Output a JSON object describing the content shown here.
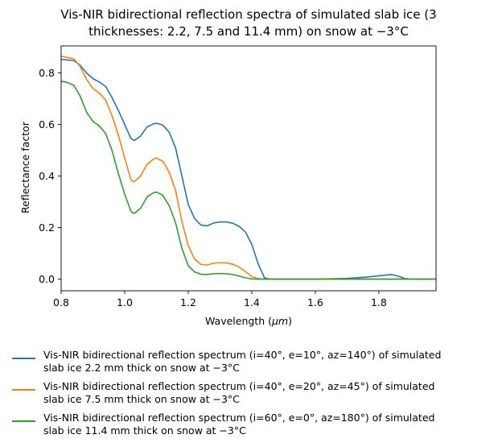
{
  "chart_data": {
    "type": "line",
    "title": "Vis-NIR bidirectional reflection spectra of simulated slab ice (3\nthicknesses: 2.2, 7.5 and 11.4 mm) on snow at −3°C",
    "xlabel": "Wavelength (μm)",
    "ylabel": "Reflectance factor",
    "xlim": [
      0.8,
      1.98
    ],
    "ylim": [
      -0.045,
      0.905
    ],
    "xticks": [
      "0.8",
      "1.0",
      "1.2",
      "1.4",
      "1.6",
      "1.8"
    ],
    "yticks": [
      "0.0",
      "0.2",
      "0.4",
      "0.6",
      "0.8"
    ],
    "grid": false,
    "legend_position": "below",
    "series": [
      {
        "name": "Vis-NIR bidirectional reflection spectrum (i=40°, e=10°, az=140°) of simulated\nslab ice 2.2 mm thick on snow at −3°C",
        "color": "#1f77b4",
        "points": [
          [
            0.8,
            0.853
          ],
          [
            0.84,
            0.848
          ],
          [
            0.86,
            0.83
          ],
          [
            0.88,
            0.8
          ],
          [
            0.9,
            0.778
          ],
          [
            0.92,
            0.765
          ],
          [
            0.94,
            0.748
          ],
          [
            0.96,
            0.705
          ],
          [
            0.98,
            0.655
          ],
          [
            1.0,
            0.6
          ],
          [
            1.02,
            0.545
          ],
          [
            1.03,
            0.538
          ],
          [
            1.05,
            0.555
          ],
          [
            1.07,
            0.59
          ],
          [
            1.09,
            0.602
          ],
          [
            1.1,
            0.605
          ],
          [
            1.12,
            0.598
          ],
          [
            1.14,
            0.57
          ],
          [
            1.16,
            0.51
          ],
          [
            1.18,
            0.4
          ],
          [
            1.2,
            0.29
          ],
          [
            1.22,
            0.235
          ],
          [
            1.24,
            0.21
          ],
          [
            1.26,
            0.207
          ],
          [
            1.28,
            0.218
          ],
          [
            1.3,
            0.222
          ],
          [
            1.32,
            0.222
          ],
          [
            1.34,
            0.217
          ],
          [
            1.36,
            0.205
          ],
          [
            1.38,
            0.183
          ],
          [
            1.4,
            0.135
          ],
          [
            1.42,
            0.06
          ],
          [
            1.44,
            0.005
          ],
          [
            1.46,
            0.0
          ],
          [
            1.6,
            0.0
          ],
          [
            1.7,
            0.003
          ],
          [
            1.76,
            0.008
          ],
          [
            1.8,
            0.013
          ],
          [
            1.84,
            0.018
          ],
          [
            1.86,
            0.012
          ],
          [
            1.88,
            0.003
          ],
          [
            1.9,
            0.0
          ],
          [
            1.98,
            0.0
          ]
        ]
      },
      {
        "name": "Vis-NIR bidirectional reflection spectrum (i=40°, e=20°, az=45°) of simulated\nslab ice 7.5 mm thick on snow at −3°C",
        "color": "#ff7f0e",
        "points": [
          [
            0.8,
            0.865
          ],
          [
            0.84,
            0.855
          ],
          [
            0.86,
            0.825
          ],
          [
            0.88,
            0.775
          ],
          [
            0.9,
            0.74
          ],
          [
            0.92,
            0.722
          ],
          [
            0.94,
            0.695
          ],
          [
            0.96,
            0.635
          ],
          [
            0.98,
            0.56
          ],
          [
            1.0,
            0.47
          ],
          [
            1.02,
            0.385
          ],
          [
            1.03,
            0.378
          ],
          [
            1.05,
            0.4
          ],
          [
            1.07,
            0.445
          ],
          [
            1.09,
            0.465
          ],
          [
            1.1,
            0.47
          ],
          [
            1.12,
            0.458
          ],
          [
            1.14,
            0.415
          ],
          [
            1.16,
            0.345
          ],
          [
            1.18,
            0.225
          ],
          [
            1.2,
            0.13
          ],
          [
            1.22,
            0.078
          ],
          [
            1.24,
            0.057
          ],
          [
            1.26,
            0.055
          ],
          [
            1.28,
            0.062
          ],
          [
            1.3,
            0.064
          ],
          [
            1.32,
            0.063
          ],
          [
            1.34,
            0.058
          ],
          [
            1.36,
            0.047
          ],
          [
            1.38,
            0.03
          ],
          [
            1.4,
            0.01
          ],
          [
            1.42,
            0.002
          ],
          [
            1.44,
            0.0
          ],
          [
            1.98,
            0.0
          ]
        ]
      },
      {
        "name": "Vis-NIR bidirectional reflection spectrum (i=60°, e=0°, az=180°) of simulated\nslab ice 11.4 mm thick on snow at −3°C",
        "color": "#2ca02c",
        "points": [
          [
            0.8,
            0.768
          ],
          [
            0.82,
            0.763
          ],
          [
            0.84,
            0.752
          ],
          [
            0.86,
            0.71
          ],
          [
            0.88,
            0.648
          ],
          [
            0.9,
            0.612
          ],
          [
            0.92,
            0.595
          ],
          [
            0.94,
            0.565
          ],
          [
            0.96,
            0.5
          ],
          [
            0.98,
            0.41
          ],
          [
            1.0,
            0.33
          ],
          [
            1.02,
            0.262
          ],
          [
            1.03,
            0.255
          ],
          [
            1.05,
            0.275
          ],
          [
            1.07,
            0.318
          ],
          [
            1.09,
            0.335
          ],
          [
            1.1,
            0.338
          ],
          [
            1.12,
            0.325
          ],
          [
            1.14,
            0.285
          ],
          [
            1.16,
            0.22
          ],
          [
            1.18,
            0.12
          ],
          [
            1.2,
            0.052
          ],
          [
            1.22,
            0.028
          ],
          [
            1.24,
            0.019
          ],
          [
            1.26,
            0.018
          ],
          [
            1.28,
            0.021
          ],
          [
            1.3,
            0.022
          ],
          [
            1.32,
            0.021
          ],
          [
            1.34,
            0.018
          ],
          [
            1.36,
            0.012
          ],
          [
            1.38,
            0.005
          ],
          [
            1.4,
            0.001
          ],
          [
            1.42,
            0.0
          ],
          [
            1.98,
            0.0
          ]
        ]
      }
    ]
  }
}
